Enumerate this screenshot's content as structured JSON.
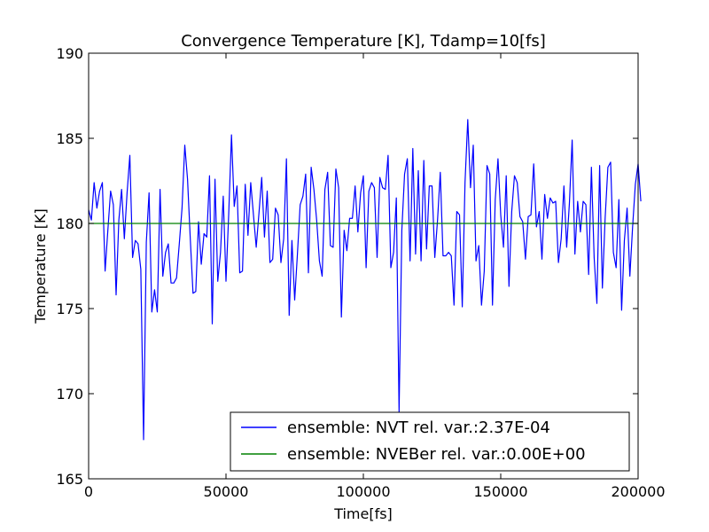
{
  "chart_data": {
    "type": "line",
    "title": "Convergence Temperature [K], Tdamp=10[fs]",
    "xlabel": "Time[fs]",
    "ylabel": "Temperature [K]",
    "xlim": [
      0,
      200000
    ],
    "ylim": [
      165,
      190
    ],
    "xticks": [
      0,
      50000,
      100000,
      150000,
      200000
    ],
    "xtick_labels": [
      "0",
      "50000",
      "100000",
      "150000",
      "200000"
    ],
    "yticks": [
      165,
      170,
      175,
      180,
      185,
      190
    ],
    "ytick_labels": [
      "165",
      "170",
      "175",
      "180",
      "185",
      "190"
    ],
    "grid": false,
    "legend_position": "lower-right",
    "series": [
      {
        "name": "ensemble: NVT rel. var.:2.37E-04",
        "color": "#0000ff",
        "x_start": 0,
        "x_step": 1000,
        "values": [
          180.8,
          180.2,
          182.4,
          180.9,
          181.9,
          182.4,
          177.2,
          179.6,
          181.9,
          181.1,
          175.8,
          180.2,
          182.0,
          179.1,
          181.8,
          184.0,
          178.0,
          179.0,
          178.8,
          177.3,
          167.3,
          178.9,
          181.8,
          174.8,
          176.1,
          174.8,
          182.0,
          176.9,
          178.3,
          178.8,
          176.5,
          176.5,
          176.8,
          178.8,
          180.9,
          184.6,
          182.6,
          179.1,
          175.9,
          176.0,
          180.1,
          177.6,
          179.4,
          179.2,
          182.8,
          174.1,
          182.6,
          176.6,
          178.3,
          181.6,
          176.6,
          180.6,
          185.2,
          181.0,
          182.2,
          177.1,
          177.2,
          182.3,
          179.3,
          182.4,
          180.5,
          178.6,
          180.6,
          182.7,
          179.2,
          181.9,
          177.7,
          177.9,
          180.9,
          180.5,
          177.7,
          179.1,
          183.8,
          174.6,
          179.0,
          175.5,
          178.2,
          181.1,
          181.6,
          182.9,
          177.1,
          183.3,
          182.0,
          180.2,
          177.8,
          176.9,
          182.0,
          183.0,
          178.7,
          178.6,
          183.2,
          182.1,
          174.5,
          179.6,
          178.4,
          180.3,
          180.3,
          182.2,
          179.5,
          181.8,
          182.8,
          177.4,
          181.9,
          182.4,
          182.1,
          178.0,
          182.7,
          182.1,
          182.0,
          184.0,
          177.4,
          178.3,
          181.5,
          168.9,
          179.6,
          182.9,
          183.8,
          177.8,
          184.4,
          178.2,
          183.1,
          177.8,
          183.7,
          178.5,
          182.2,
          182.2,
          178.0,
          180.2,
          183.0,
          178.1,
          178.1,
          178.3,
          178.1,
          175.2,
          180.7,
          180.5,
          175.1,
          182.4,
          186.1,
          182.1,
          184.6,
          177.8,
          178.7,
          175.2,
          177.2,
          183.4,
          182.9,
          175.2,
          181.4,
          183.8,
          180.5,
          178.6,
          182.8,
          176.3,
          180.7,
          182.8,
          182.4,
          180.4,
          180.1,
          177.9,
          180.4,
          180.5,
          183.5,
          179.8,
          180.7,
          177.9,
          181.7,
          180.3,
          181.5,
          181.2,
          181.3,
          177.7,
          179.1,
          182.2,
          178.6,
          181.2,
          184.9,
          178.2,
          181.3,
          179.5,
          181.3,
          181.1,
          177.0,
          183.3,
          178.0,
          175.3,
          183.4,
          176.2,
          180.3,
          183.3,
          183.6,
          178.3,
          177.4,
          181.4,
          174.9,
          179.0,
          180.9,
          176.9,
          179.8,
          182.3,
          183.5,
          181.3
        ]
      },
      {
        "name": "ensemble: NVEBer rel. var.:0.00E+00",
        "color": "#008000",
        "x": [
          0,
          200000
        ],
        "values": [
          180.0,
          180.0
        ]
      }
    ]
  }
}
